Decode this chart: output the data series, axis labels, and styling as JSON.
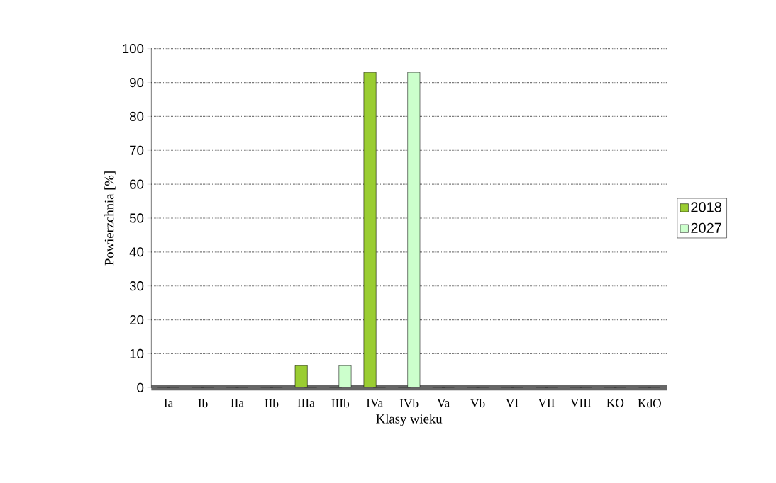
{
  "chart_data": {
    "type": "bar",
    "xlabel": "Klasy wieku",
    "ylabel": "Powierzchnia [%]",
    "categories": [
      "Ia",
      "Ib",
      "IIa",
      "IIb",
      "IIIa",
      "IIIb",
      "IVa",
      "IVb",
      "Va",
      "Vb",
      "VI",
      "VII",
      "VIII",
      "KO",
      "KdO"
    ],
    "series": [
      {
        "name": "2018",
        "color": "#9acd32",
        "values": [
          0,
          0,
          0,
          0,
          6.5,
          0,
          93,
          0,
          0,
          0,
          0,
          0,
          0,
          0,
          0
        ]
      },
      {
        "name": "2027",
        "color": "#ccffcc",
        "values": [
          0,
          0,
          0,
          0,
          0,
          6.5,
          0,
          93,
          0,
          0,
          0,
          0,
          0,
          0,
          0
        ]
      }
    ],
    "ylim": [
      0,
      100
    ],
    "yticks": [
      0,
      10,
      20,
      30,
      40,
      50,
      60,
      70,
      80,
      90,
      100
    ],
    "grid": "y",
    "legend": "right"
  }
}
